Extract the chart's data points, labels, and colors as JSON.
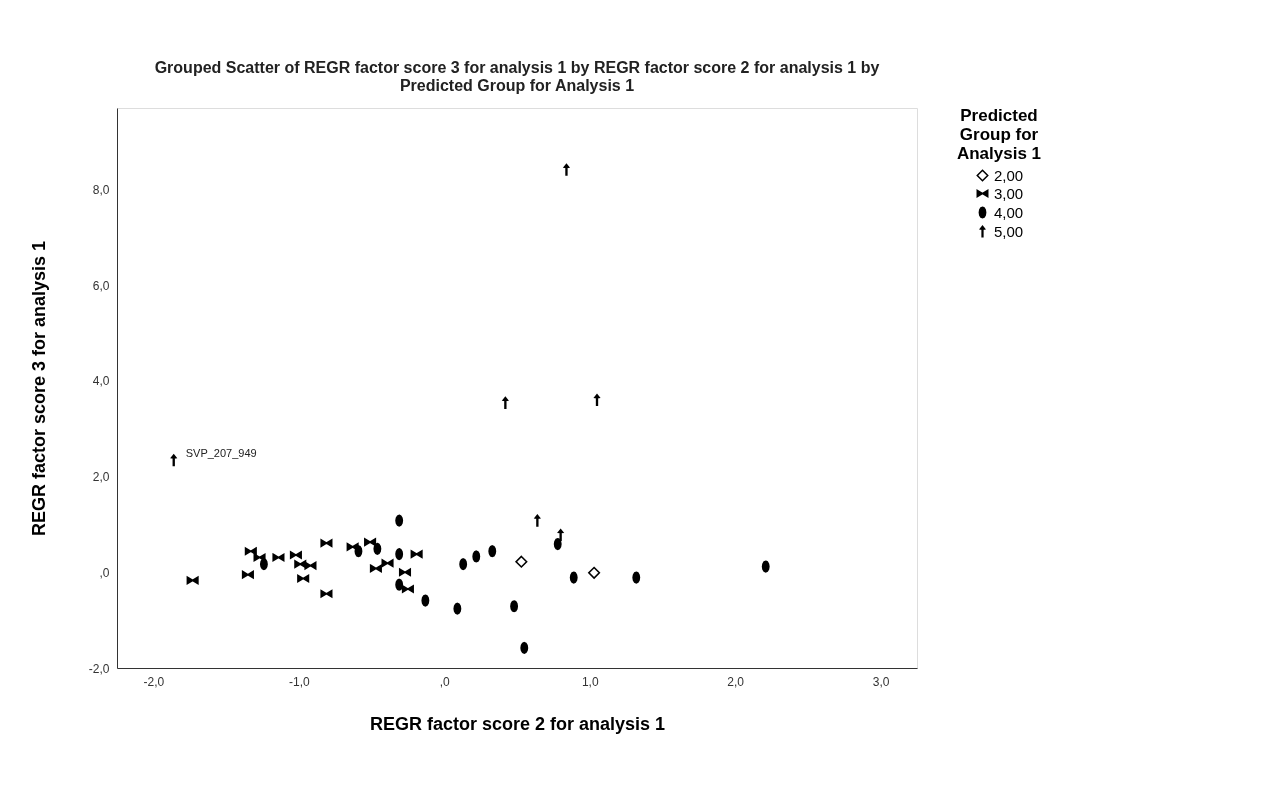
{
  "chart_data": {
    "type": "scatter",
    "title": "Grouped Scatter of REGR factor score   3 for analysis 1 by REGR factor score   2 for analysis 1 by Predicted Group for Analysis 1",
    "xlabel": "REGR factor score   2 for analysis 1",
    "ylabel": "REGR factor score   3 for analysis 1",
    "legend_title": "Predicted Group for Analysis 1",
    "legend": "top right",
    "grid": false,
    "xlim": [
      -2.25,
      3.25
    ],
    "ylim": [
      -2.0,
      9.7
    ],
    "xticks": [
      {
        "value": -2,
        "label": "-2,0"
      },
      {
        "value": -1,
        "label": "-1,0"
      },
      {
        "value": 0,
        "label": ",0"
      },
      {
        "value": 1,
        "label": "1,0"
      },
      {
        "value": 2,
        "label": "2,0"
      },
      {
        "value": 3,
        "label": "3,0"
      }
    ],
    "yticks": [
      {
        "value": -2,
        "label": "-2,0"
      },
      {
        "value": 0,
        "label": ",0"
      },
      {
        "value": 2,
        "label": "2,0"
      },
      {
        "value": 4,
        "label": "4,0"
      },
      {
        "value": 6,
        "label": "6,0"
      },
      {
        "value": 8,
        "label": "8,0"
      }
    ],
    "annotations": [
      {
        "text": "SVP_207_949",
        "x": -1.86,
        "y": 2.34
      }
    ],
    "series": [
      {
        "name": "2,00",
        "color": "#000000",
        "x": [
          0.53,
          1.03
        ],
        "values": [
          0.22,
          -0.01
        ]
      },
      {
        "name": "3,00",
        "color": "#000000",
        "x": [
          -1.73,
          -1.33,
          -1.27,
          -1.35,
          -1.14,
          -1.02,
          -0.99,
          -0.92,
          -0.97,
          -0.81,
          -0.81,
          -0.63,
          -0.51,
          -0.47,
          -0.39,
          -0.27,
          -0.19,
          -0.25
        ],
        "values": [
          -0.17,
          0.44,
          0.31,
          -0.05,
          0.31,
          0.36,
          0.17,
          0.14,
          -0.13,
          0.61,
          -0.45,
          0.53,
          0.63,
          0.08,
          0.19,
          0.0,
          0.38,
          -0.35
        ]
      },
      {
        "name": "4,00",
        "color": "#000000",
        "x": [
          -1.24,
          -0.59,
          -0.46,
          -0.31,
          -0.31,
          -0.31,
          -0.13,
          0.09,
          0.13,
          0.22,
          0.33,
          0.48,
          0.55,
          0.78,
          0.89,
          1.32,
          2.21
        ],
        "values": [
          0.17,
          0.44,
          0.49,
          1.08,
          0.38,
          -0.26,
          -0.59,
          -0.76,
          0.17,
          0.33,
          0.44,
          -0.71,
          -1.58,
          0.59,
          -0.11,
          -0.11,
          0.12
        ]
      },
      {
        "name": "5,00",
        "color": "#000000",
        "x": [
          0.84,
          0.42,
          1.05,
          -1.86,
          0.64,
          0.8
        ],
        "values": [
          8.41,
          3.54,
          3.6,
          2.34,
          1.08,
          0.78
        ]
      }
    ]
  }
}
